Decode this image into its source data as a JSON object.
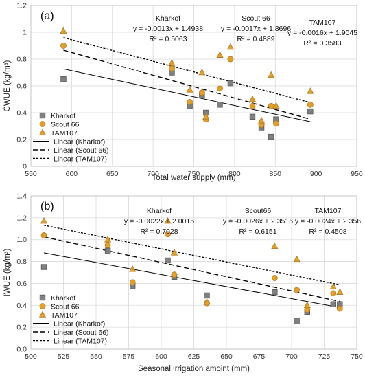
{
  "chart_data": [
    {
      "type": "scatter",
      "panel_label": "(a)",
      "xlabel": "Total water supply (mm)",
      "ylabel": "CWUE (kg/m³)",
      "xlim": [
        550,
        950
      ],
      "ylim": [
        0,
        1.2
      ],
      "xticks": [
        "550",
        "600",
        "650",
        "700",
        "750",
        "800",
        "850",
        "900",
        "950"
      ],
      "yticks": [
        "0",
        "0.2",
        "0.4",
        "0.6",
        "0.8",
        "1",
        "1.2"
      ],
      "x_tick_values": [
        550,
        600,
        650,
        700,
        750,
        800,
        850,
        900,
        950
      ],
      "y_tick_values": [
        0,
        0.2,
        0.4,
        0.6,
        0.8,
        1.0,
        1.2
      ],
      "grid": true,
      "legend_position": "bottom-left",
      "series": [
        {
          "name": "Kharkof",
          "marker": "square",
          "color": "#808080",
          "x": [
            590,
            723,
            745,
            760,
            765,
            782,
            795,
            822,
            833,
            845,
            851,
            893
          ],
          "y": [
            0.65,
            0.7,
            0.45,
            0.53,
            0.4,
            0.46,
            0.62,
            0.37,
            0.29,
            0.22,
            0.35,
            0.41
          ]
        },
        {
          "name": "Scout 66",
          "marker": "circle",
          "color": "#E0A030",
          "x": [
            590,
            723,
            745,
            760,
            765,
            782,
            795,
            822,
            833,
            845,
            851,
            893
          ],
          "y": [
            0.9,
            0.73,
            0.48,
            0.55,
            0.35,
            0.58,
            0.8,
            0.45,
            0.31,
            0.45,
            0.32,
            0.46
          ]
        },
        {
          "name": "TAM107",
          "marker": "triangle",
          "color": "#E0A030",
          "x": [
            590,
            723,
            745,
            760,
            765,
            782,
            795,
            822,
            833,
            845,
            851,
            893
          ],
          "y": [
            1.01,
            0.77,
            0.57,
            0.7,
            0.37,
            0.83,
            0.89,
            0.5,
            0.34,
            0.68,
            0.45,
            0.56
          ]
        }
      ],
      "trendlines": [
        {
          "name": "Linear (Kharkof)",
          "style": "solid",
          "slope": -0.0013,
          "intercept": 1.4938,
          "x_range": [
            590,
            893
          ]
        },
        {
          "name": "Linear (Scout 66)",
          "style": "dashed",
          "slope": -0.0017,
          "intercept": 1.8696,
          "x_range": [
            590,
            893
          ]
        },
        {
          "name": "Linear (TAM107)",
          "style": "dotted",
          "slope": -0.0016,
          "intercept": 1.9045,
          "x_range": [
            590,
            893
          ]
        }
      ],
      "annotations": [
        {
          "lines": [
            "Kharkof",
            "y = -0.0013x + 1.4938",
            "R² = 0.5063"
          ]
        },
        {
          "lines": [
            "Scout 66",
            "y = -0.0017x + 1.8696",
            "R² = 0.4889"
          ]
        },
        {
          "lines": [
            "TAM107",
            "y = -0.0016x + 1.9045",
            "R² = 0.3583"
          ]
        }
      ]
    },
    {
      "type": "scatter",
      "panel_label": "(b)",
      "xlabel": "Seasonal irrigation amoint (mm)",
      "ylabel": "IWUE (kg/m³)",
      "xlim": [
        500,
        750
      ],
      "ylim": [
        0,
        1.4
      ],
      "xticks": [
        "500",
        "525",
        "550",
        "575",
        "600",
        "625",
        "650",
        "675",
        "700",
        "725",
        "750"
      ],
      "yticks": [
        "0.0",
        "0.2",
        "0.4",
        "0.6",
        "0.8",
        "1.0",
        "1.2",
        "1.4"
      ],
      "x_tick_values": [
        500,
        525,
        550,
        575,
        600,
        625,
        650,
        675,
        700,
        725,
        750
      ],
      "y_tick_values": [
        0,
        0.2,
        0.4,
        0.6,
        0.8,
        1.0,
        1.2,
        1.4
      ],
      "grid": true,
      "legend_position": "bottom-left",
      "series": [
        {
          "name": "Kharkof",
          "marker": "square",
          "color": "#808080",
          "x": [
            510,
            559,
            578,
            605,
            610,
            635,
            687,
            704,
            712,
            732,
            737
          ],
          "y": [
            0.75,
            0.9,
            0.58,
            0.81,
            0.66,
            0.49,
            0.52,
            0.26,
            0.34,
            0.41,
            0.41
          ]
        },
        {
          "name": "Scout 66",
          "marker": "circle",
          "color": "#E0A030",
          "x": [
            510,
            559,
            578,
            605,
            610,
            635,
            687,
            704,
            712,
            732,
            737
          ],
          "y": [
            1.04,
            0.95,
            0.61,
            1.05,
            0.68,
            0.42,
            0.65,
            0.54,
            0.36,
            0.51,
            0.37
          ]
        },
        {
          "name": "TAM107",
          "marker": "triangle",
          "color": "#E0A030",
          "x": [
            510,
            559,
            578,
            605,
            610,
            635,
            687,
            704,
            712,
            732,
            737
          ],
          "y": [
            1.17,
            1.0,
            0.73,
            1.17,
            0.88,
            0.43,
            0.94,
            0.82,
            0.4,
            0.57,
            0.52
          ]
        }
      ],
      "trendlines": [
        {
          "name": "Linear (Kharkof)",
          "style": "solid",
          "slope": -0.0022,
          "intercept": 2.0015,
          "x_range": [
            510,
            737
          ]
        },
        {
          "name": "Linear (Scout 66)",
          "style": "dashed",
          "slope": -0.0026,
          "intercept": 2.3516,
          "x_range": [
            510,
            737
          ]
        },
        {
          "name": "Linear (TAM107)",
          "style": "dotted",
          "slope": -0.0024,
          "intercept": 2.356,
          "x_range": [
            510,
            737
          ]
        }
      ],
      "annotations": [
        {
          "lines": [
            "Kharkof",
            "y = -0.0022x + 2.0015",
            "R² = 0.7028"
          ]
        },
        {
          "lines": [
            "Scout66",
            "y = -0.0026x + 2.3516",
            "R² = 0.6151"
          ]
        },
        {
          "lines": [
            "TAM107",
            "y = -0.0024x + 2.356",
            "R² = 0.4508"
          ]
        }
      ]
    }
  ]
}
